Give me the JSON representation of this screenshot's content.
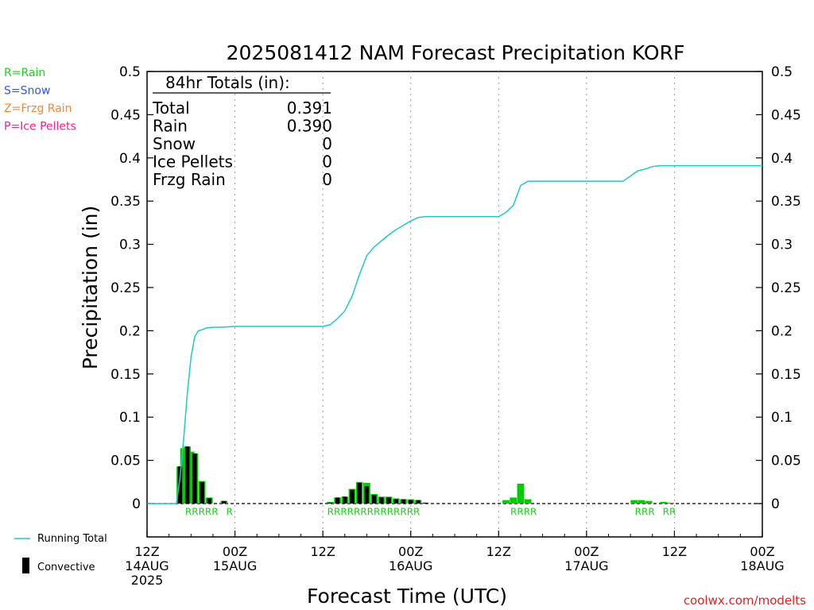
{
  "chart_data": {
    "type": "bar",
    "title": "2025081412 NAM Forecast Precipitation KORF",
    "ylabel": "Precipitation (in)",
    "xlabel": "Forecast Time (UTC)",
    "ylim": [
      -0.04,
      0.5
    ],
    "y_ticks": [
      0,
      0.05,
      0.1,
      0.15,
      0.2,
      0.25,
      0.3,
      0.35,
      0.4,
      0.45,
      0.5
    ],
    "y_tick_labels": [
      "0",
      "0.05",
      "0.1",
      "0.15",
      "0.2",
      "0.25",
      "0.3",
      "0.35",
      "0.4",
      "0.45",
      "0.5"
    ],
    "xlim_hours": [
      0,
      84
    ],
    "x_ticks": [
      {
        "hour": 0,
        "lines": [
          "12Z",
          "14AUG",
          "2025"
        ]
      },
      {
        "hour": 12,
        "lines": [
          "00Z",
          "15AUG"
        ]
      },
      {
        "hour": 24,
        "lines": [
          "12Z"
        ]
      },
      {
        "hour": 36,
        "lines": [
          "00Z",
          "16AUG"
        ]
      },
      {
        "hour": 48,
        "lines": [
          "12Z"
        ]
      },
      {
        "hour": 60,
        "lines": [
          "00Z",
          "17AUG"
        ]
      },
      {
        "hour": 72,
        "lines": [
          "12Z"
        ]
      },
      {
        "hour": 84,
        "lines": [
          "00Z",
          "18AUG"
        ]
      }
    ],
    "grid": "vertical dotted at tick hours",
    "series": [
      {
        "name": "Running Total",
        "kind": "line",
        "color": "#20c8c8",
        "points": [
          [
            0,
            0
          ],
          [
            4,
            0
          ],
          [
            4.5,
            0.03
          ],
          [
            5,
            0.075
          ],
          [
            5.5,
            0.128
          ],
          [
            6,
            0.169
          ],
          [
            6.5,
            0.193
          ],
          [
            7,
            0.2
          ],
          [
            7.5,
            0.201
          ],
          [
            8,
            0.203
          ],
          [
            9,
            0.204
          ],
          [
            10,
            0.204
          ],
          [
            12,
            0.205
          ],
          [
            24,
            0.205
          ],
          [
            25,
            0.207
          ],
          [
            26,
            0.214
          ],
          [
            27,
            0.223
          ],
          [
            28,
            0.24
          ],
          [
            29,
            0.265
          ],
          [
            30,
            0.287
          ],
          [
            31,
            0.297
          ],
          [
            32,
            0.304
          ],
          [
            33,
            0.311
          ],
          [
            34,
            0.317
          ],
          [
            35,
            0.322
          ],
          [
            36,
            0.327
          ],
          [
            37,
            0.331
          ],
          [
            38,
            0.332
          ],
          [
            48,
            0.332
          ],
          [
            49,
            0.337
          ],
          [
            50,
            0.345
          ],
          [
            51,
            0.368
          ],
          [
            52,
            0.373
          ],
          [
            60,
            0.373
          ],
          [
            65,
            0.373
          ],
          [
            66,
            0.379
          ],
          [
            67,
            0.385
          ],
          [
            68,
            0.387
          ],
          [
            69,
            0.39
          ],
          [
            70,
            0.391
          ],
          [
            84,
            0.391
          ]
        ]
      },
      {
        "name": "Convective",
        "kind": "bar",
        "color": "#000000",
        "bars": [
          [
            4.5,
            0.043
          ],
          [
            5,
            0.0
          ],
          [
            5.5,
            0.066
          ],
          [
            6,
            0.0
          ],
          [
            6.5,
            0.058
          ],
          [
            7.5,
            0.025
          ],
          [
            8.5,
            0.006
          ],
          [
            10.5,
            0.003
          ],
          [
            25,
            0.001
          ],
          [
            26,
            0.007
          ],
          [
            27,
            0.008
          ],
          [
            28,
            0.016
          ],
          [
            29,
            0.024
          ],
          [
            30,
            0.02
          ],
          [
            31,
            0.01
          ],
          [
            32,
            0.007
          ],
          [
            33,
            0.007
          ],
          [
            34,
            0.005
          ],
          [
            35,
            0.005
          ],
          [
            36,
            0.004
          ],
          [
            37,
            0.004
          ],
          [
            38,
            0.001
          ]
        ]
      },
      {
        "name": "Rain",
        "kind": "bar",
        "color": "#00cc00",
        "bars": [
          [
            4.5,
            0.043
          ],
          [
            5,
            0.064
          ],
          [
            5.5,
            0.066
          ],
          [
            6,
            0.06
          ],
          [
            6.5,
            0.058
          ],
          [
            7.5,
            0.026
          ],
          [
            8.5,
            0.007
          ],
          [
            10.5,
            0.003
          ],
          [
            25,
            0.002
          ],
          [
            26,
            0.007
          ],
          [
            27,
            0.008
          ],
          [
            28,
            0.017
          ],
          [
            29,
            0.025
          ],
          [
            30,
            0.024
          ],
          [
            31,
            0.011
          ],
          [
            32,
            0.008
          ],
          [
            33,
            0.008
          ],
          [
            34,
            0.006
          ],
          [
            35,
            0.005
          ],
          [
            36,
            0.005
          ],
          [
            37,
            0.004
          ],
          [
            38,
            0.001
          ],
          [
            49,
            0.004
          ],
          [
            50,
            0.007
          ],
          [
            51,
            0.023
          ],
          [
            52,
            0.005
          ],
          [
            66.5,
            0.004
          ],
          [
            67.5,
            0.004
          ],
          [
            68.5,
            0.003
          ],
          [
            70.5,
            0.002
          ],
          [
            71.5,
            0.001
          ]
        ]
      }
    ],
    "type_markers": {
      "y_value": -0.008,
      "groups": [
        {
          "start_hour": 5.2,
          "text": "RRRRR"
        },
        {
          "start_hour": 10.8,
          "text": "R"
        },
        {
          "start_hour": 24.6,
          "text": "RRRRRRRRRRRRRR"
        },
        {
          "start_hour": 49.6,
          "text": "RRRR"
        },
        {
          "start_hour": 66.6,
          "text": "RRR"
        },
        {
          "start_hour": 70.4,
          "text": "RR"
        }
      ]
    }
  },
  "totals_box": {
    "title": "84hr Totals (in):",
    "rows": [
      {
        "label": "Total",
        "value": "0.391"
      },
      {
        "label": "Rain",
        "value": "0.390"
      },
      {
        "label": "Snow",
        "value": "0"
      },
      {
        "label": "Ice Pellets",
        "value": "0"
      },
      {
        "label": "Frzg Rain",
        "value": "0"
      }
    ]
  },
  "type_legend": [
    {
      "text": "R=Rain",
      "color": "#22cc22"
    },
    {
      "text": "S=Snow",
      "color": "#3355ee"
    },
    {
      "text": "Z=Frzg Rain",
      "color": "#ee8833"
    },
    {
      "text": "P=Ice Pellets",
      "color": "#ee2288"
    }
  ],
  "series_legend": [
    {
      "text": "Running Total",
      "color": "#20c8c8"
    },
    {
      "text": "Convective",
      "color": "#000000"
    }
  ],
  "credit": "coolwx.com/modelts",
  "colors": {
    "running_total": "#20c8c8",
    "rain_bar": "#00cc00",
    "convective_bar": "#000000",
    "rain_marker": "#22cc22",
    "credit": "#dd2222"
  }
}
